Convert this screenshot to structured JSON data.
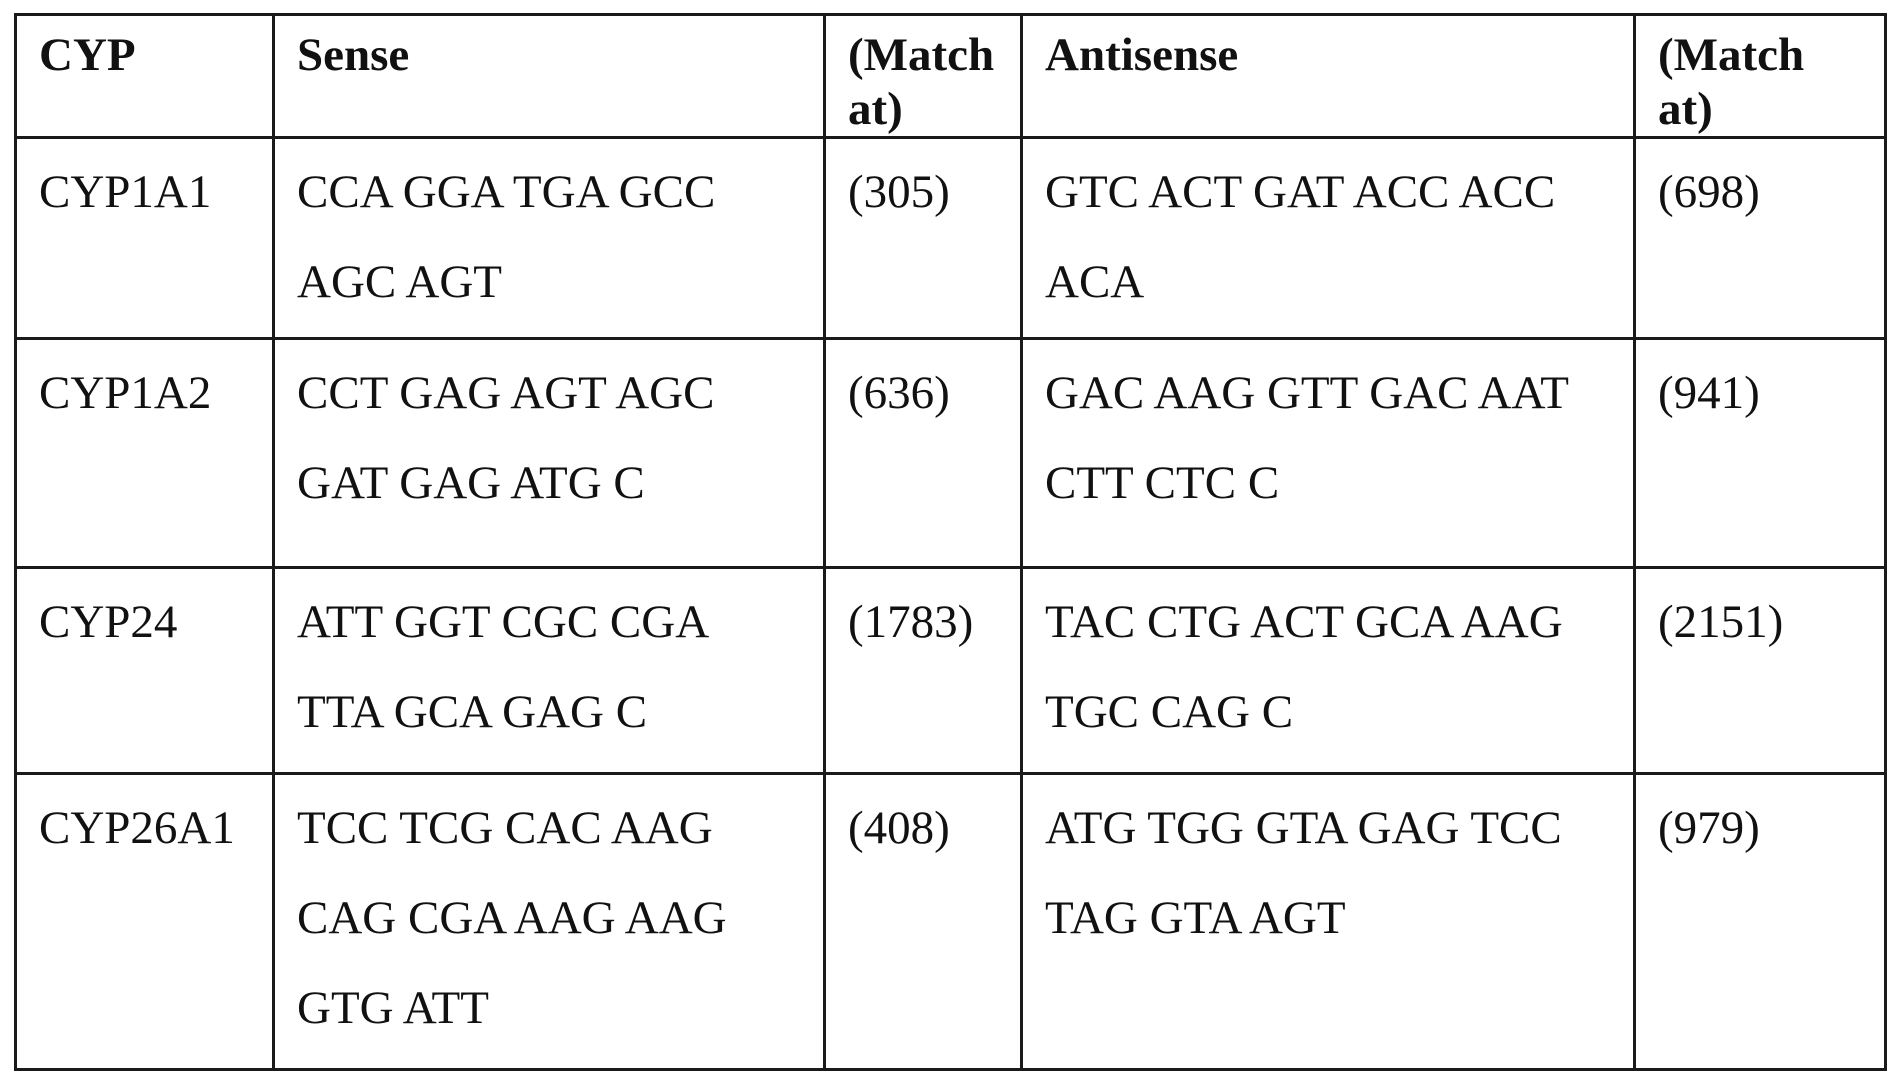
{
  "table": {
    "headers": {
      "cyp": "CYP",
      "sense": "Sense",
      "match1": [
        "(Match",
        "at)"
      ],
      "antisense": "Antisense",
      "match2": [
        "(Match",
        "at)"
      ]
    },
    "rows": [
      {
        "cyp": "CYP1A1",
        "sense": [
          "CCA GGA TGA GCC",
          "AGC AGT"
        ],
        "sense_match": "(305)",
        "antisense": [
          "GTC ACT GAT ACC ACC",
          "ACA"
        ],
        "antisense_match": "(698)"
      },
      {
        "cyp": "CYP1A2",
        "sense": [
          "CCT GAG AGT AGC",
          "GAT GAG ATG C"
        ],
        "sense_match": "(636)",
        "antisense": [
          "GAC AAG GTT GAC AAT",
          "CTT CTC C"
        ],
        "antisense_match": "(941)"
      },
      {
        "cyp": "CYP24",
        "sense": [
          "ATT GGT CGC CGA",
          "TTA GCA GAG C"
        ],
        "sense_match": "(1783)",
        "antisense": [
          "TAC CTG ACT GCA AAG",
          "TGC CAG C"
        ],
        "antisense_match": "(2151)"
      },
      {
        "cyp": "CYP26A1",
        "sense": [
          "TCC TCG CAC AAG",
          "CAG CGA AAG AAG",
          "GTG ATT"
        ],
        "sense_match": "(408)",
        "antisense": [
          "ATG TGG GTA GAG TCC",
          "TAG GTA AGT"
        ],
        "antisense_match": "(979)"
      }
    ]
  }
}
